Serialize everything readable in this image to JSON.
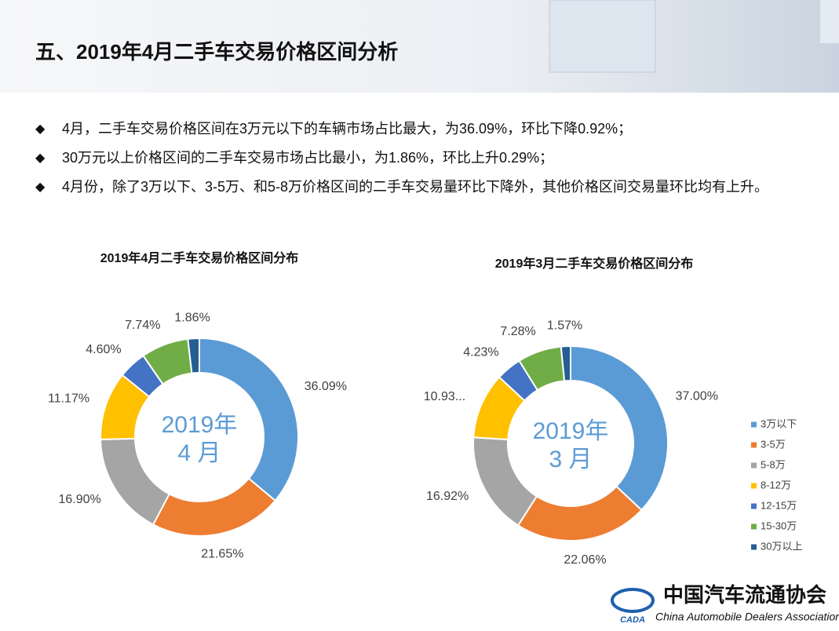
{
  "header": {
    "title": "五、2019年4月二手车交易价格区间分析"
  },
  "bullets": [
    "4月，二手车交易价格区间在3万元以下的车辆市场占比最大，为36.09%，环比下降0.92%；",
    "30万元以上价格区间的二手车交易市场占比最小，为1.86%，环比上升0.29%；",
    "4月份，除了3万以下、3-5万、和5-8万价格区间的二手车交易量环比下降外，其他价格区间交易量环比均有上升。"
  ],
  "chart_data": [
    {
      "type": "donut",
      "title": "2019年4月二手车交易价格区间分布",
      "center_label": [
        "2019年",
        "4 月"
      ],
      "values": [
        36.09,
        21.65,
        16.9,
        11.17,
        4.6,
        7.74,
        1.86
      ],
      "value_labels": [
        "36.09%",
        "21.65%",
        "16.90%",
        "11.17%",
        "4.60%",
        "7.74%",
        "1.86%"
      ],
      "colors": [
        "#5b9bd5",
        "#ed7d31",
        "#a5a5a5",
        "#ffc000",
        "#4472c4",
        "#70ad47",
        "#255e91"
      ]
    },
    {
      "type": "donut",
      "title": "2019年3月二手车交易价格区间分布",
      "center_label": [
        "2019年",
        "3 月"
      ],
      "categories": [
        "3万以下",
        "3-5万",
        "5-8万",
        "8-12万",
        "12-15万",
        "15-30万",
        "30万以上"
      ],
      "values": [
        37.0,
        22.06,
        16.92,
        10.93,
        4.23,
        7.28,
        1.57
      ],
      "value_labels": [
        "37.00%",
        "22.06%",
        "16.92%",
        "10.93...",
        "4.23%",
        "7.28%",
        "1.57%"
      ],
      "colors": [
        "#5b9bd5",
        "#ed7d31",
        "#a5a5a5",
        "#ffc000",
        "#4472c4",
        "#70ad47",
        "#255e91"
      ],
      "legend": "right"
    }
  ],
  "logo": {
    "cn": "中国汽车流通协会",
    "en": "China Automobile Dealers Association",
    "abbr": "CADA"
  }
}
